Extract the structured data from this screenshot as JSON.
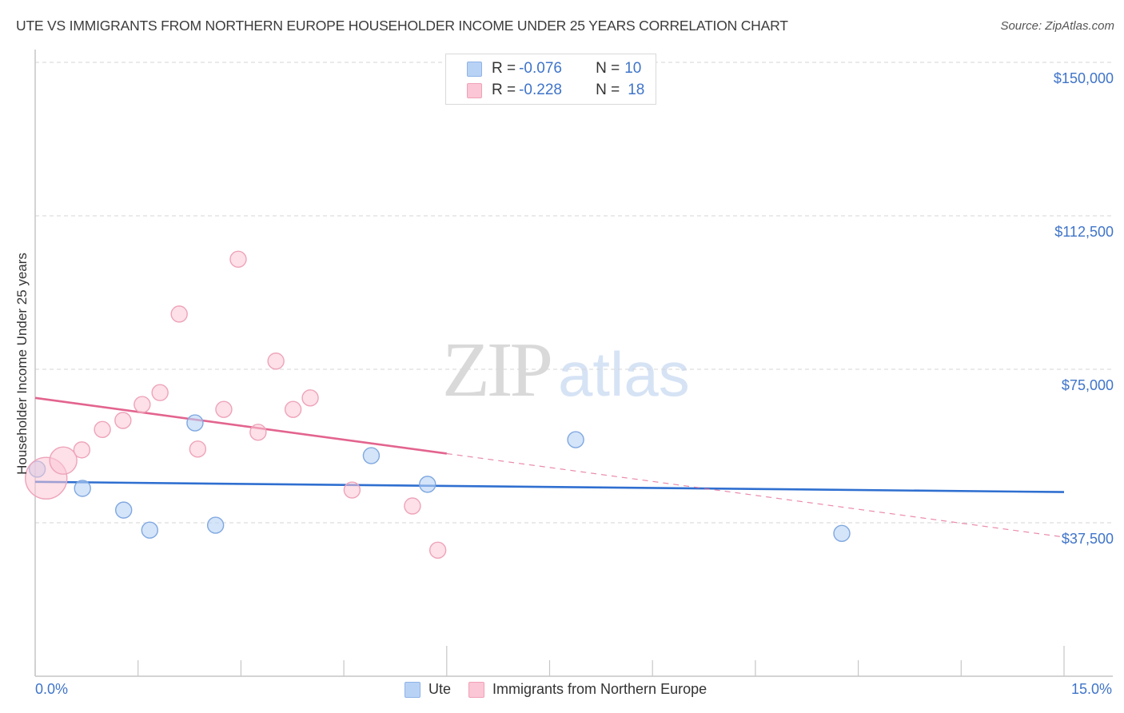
{
  "header": {
    "title": "UTE VS IMMIGRANTS FROM NORTHERN EUROPE HOUSEHOLDER INCOME UNDER 25 YEARS CORRELATION CHART",
    "source": "Source: ZipAtlas.com"
  },
  "legend_top": {
    "rows": [
      {
        "r_label": "R = ",
        "r_value": "-0.076",
        "n_label": "N = ",
        "n_value": "10",
        "color": "#b8d2f5",
        "border": "#8fb3e6"
      },
      {
        "r_label": "R = ",
        "r_value": "-0.228",
        "n_label": "N = ",
        "n_value": "18",
        "color": "#fbc6d5",
        "border": "#f0a1b8"
      }
    ]
  },
  "axes": {
    "ylabel": "Householder Income Under 25 years",
    "y_ticks": [
      "$150,000",
      "$112,500",
      "$75,000",
      "$37,500"
    ],
    "x_min_label": "0.0%",
    "x_max_label": "15.0%"
  },
  "bottom_legend": {
    "items": [
      {
        "label": "Ute",
        "color": "#b8d2f5",
        "border": "#8fb3e6"
      },
      {
        "label": "Immigrants from Northern Europe",
        "color": "#fbc6d5",
        "border": "#f0a1b8"
      }
    ]
  },
  "watermark": {
    "zip": "ZIP",
    "atlas": "atlas"
  },
  "colors": {
    "blue_line": "#2f6fd0",
    "pink_line": "#e3648e",
    "tick_text": "#3f74c9",
    "grid": "#d6d6d6",
    "axis": "#c6c6c6"
  },
  "chart_data": {
    "type": "scatter",
    "title": "UTE VS IMMIGRANTS FROM NORTHERN EUROPE HOUSEHOLDER INCOME UNDER 25 YEARS CORRELATION CHART",
    "xlabel": "",
    "ylabel": "Householder Income Under 25 years",
    "xlim": [
      0,
      15
    ],
    "ylim": [
      0,
      150000
    ],
    "x_unit": "%",
    "y_ticks": [
      37500,
      75000,
      112500,
      150000
    ],
    "grid": true,
    "legend_position": "top-center and bottom",
    "series": [
      {
        "name": "Ute",
        "R": -0.076,
        "N": 10,
        "color": "#b8d2f5",
        "points": [
          {
            "x": 0.03,
            "y": 50600
          },
          {
            "x": 0.69,
            "y": 45900
          },
          {
            "x": 1.29,
            "y": 40600
          },
          {
            "x": 1.67,
            "y": 35700
          },
          {
            "x": 2.33,
            "y": 61900
          },
          {
            "x": 2.63,
            "y": 36900
          },
          {
            "x": 4.9,
            "y": 53900
          },
          {
            "x": 5.72,
            "y": 46900
          },
          {
            "x": 7.88,
            "y": 57800
          },
          {
            "x": 11.76,
            "y": 34900
          }
        ],
        "trend": {
          "x0": 0,
          "y0": 47500,
          "x1": 15,
          "y1": 45000,
          "solid_to_x": 15
        }
      },
      {
        "name": "Immigrants from Northern Europe",
        "R": -0.228,
        "N": 18,
        "color": "#fbc6d5",
        "points": [
          {
            "x": 0.16,
            "y": 48400,
            "size": "large"
          },
          {
            "x": 0.41,
            "y": 52700,
            "size": "large"
          },
          {
            "x": 0.68,
            "y": 55300
          },
          {
            "x": 0.98,
            "y": 60300
          },
          {
            "x": 1.28,
            "y": 62500
          },
          {
            "x": 1.56,
            "y": 66400
          },
          {
            "x": 1.82,
            "y": 69300
          },
          {
            "x": 2.1,
            "y": 88500
          },
          {
            "x": 2.37,
            "y": 55500
          },
          {
            "x": 2.75,
            "y": 65200
          },
          {
            "x": 2.96,
            "y": 101900
          },
          {
            "x": 3.25,
            "y": 59600
          },
          {
            "x": 3.51,
            "y": 77000
          },
          {
            "x": 3.76,
            "y": 65200
          },
          {
            "x": 4.01,
            "y": 68000
          },
          {
            "x": 4.62,
            "y": 45500
          },
          {
            "x": 5.5,
            "y": 41600
          },
          {
            "x": 5.87,
            "y": 30800
          }
        ],
        "trend": {
          "x0": 0,
          "y0": 68000,
          "x1": 15,
          "y1": 34000,
          "solid_to_x": 6.0
        }
      }
    ]
  }
}
